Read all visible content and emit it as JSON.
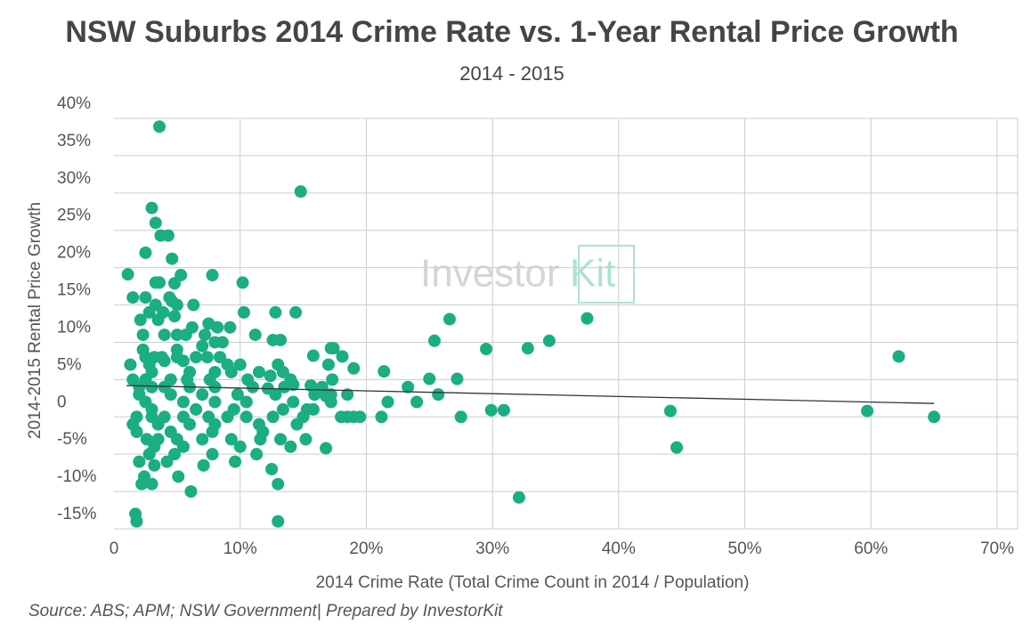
{
  "chart_data": {
    "type": "scatter",
    "title": "NSW Suburbs 2014 Crime Rate vs. 1-Year Rental Price Growth",
    "subtitle": "2014 - 2015",
    "x_label": "2014 Crime Rate (Total Crime Count in 2014 / Population)",
    "y_label": "2014-2015 Rental Price Growth",
    "source": "Source: ABS; APM; NSW Government| Prepared by InvestorKit",
    "watermark": [
      "Investor",
      "Kit"
    ],
    "color": "#1aae82",
    "grid": true,
    "xlim": [
      0,
      70
    ],
    "ylim": [
      -15,
      40
    ],
    "xticks": [
      0,
      {
        "value": 10,
        "label": "10%"
      },
      {
        "value": 20,
        "label": "20%"
      },
      {
        "value": 30,
        "label": "30%"
      },
      {
        "value": 40,
        "label": "40%"
      },
      {
        "value": 50,
        "label": "50%"
      },
      {
        "value": 60,
        "label": "60%"
      },
      {
        "value": 70,
        "label": "70%"
      }
    ],
    "yticks": [
      {
        "value": 40,
        "label": "40%"
      },
      {
        "value": 35,
        "label": "35%"
      },
      {
        "value": 30,
        "label": "30%"
      },
      {
        "value": 25,
        "label": "25%"
      },
      {
        "value": 20,
        "label": "20%"
      },
      {
        "value": 15,
        "label": "15%"
      },
      {
        "value": 10,
        "label": "10%"
      },
      {
        "value": 5,
        "label": "5%"
      },
      0,
      {
        "value": -5,
        "label": "-5%"
      },
      {
        "value": -10,
        "label": "-10%"
      },
      {
        "value": -15,
        "label": "-15%"
      }
    ],
    "trendline": {
      "x": [
        1,
        65
      ],
      "y": [
        4.2,
        1.8
      ]
    },
    "x": [
      3.6,
      14.8,
      3,
      3.3,
      3.7,
      4.3,
      2.5,
      4.6,
      1.1,
      5.3,
      7.8,
      3.3,
      3.6,
      4.8,
      10.2,
      1.5,
      2.5,
      4.4,
      4.6,
      3.3,
      5,
      6.3,
      2.8,
      3.9,
      10.3,
      12.8,
      14.4,
      2.1,
      3.5,
      4.8,
      6.2,
      8.2,
      9.2,
      7.5,
      26.6,
      37.5,
      2.3,
      4,
      5,
      5.7,
      7.2,
      11.2,
      8,
      8.6,
      12.6,
      13.2,
      25.4,
      34.5,
      2.3,
      5,
      7,
      17.2,
      17.4,
      29.5,
      32.8,
      2.5,
      3.2,
      3.8,
      5,
      6.5,
      7.4,
      8.4,
      15.8,
      18.1,
      62.2,
      1.3,
      2.8,
      4,
      5.5,
      9,
      10,
      13,
      17,
      19,
      21.4,
      3,
      6,
      8,
      9.3,
      11.5,
      12.4,
      13.4,
      14,
      27.2,
      25,
      1.5,
      2.5,
      4.5,
      5.8,
      7.6,
      10.6,
      17.3,
      15.6,
      23.3,
      16.5,
      2,
      3,
      4,
      6,
      8,
      11,
      12.2,
      13.5,
      14.2,
      2,
      4.5,
      7,
      9.8,
      12.8,
      15.9,
      17.2,
      18.5,
      25.7,
      16.8,
      2.5,
      5.5,
      8,
      10.5,
      14.2,
      17.2,
      21.7,
      24,
      3,
      6.5,
      9.5,
      13.4,
      15.3,
      15.8,
      29.9,
      30.9,
      44.1,
      59.7,
      1.8,
      3,
      4,
      5.5,
      7.5,
      9,
      10.5,
      12.6,
      15,
      18,
      18.5,
      19,
      19.5,
      21.2,
      27.5,
      65,
      1.5,
      3.5,
      6,
      8,
      11.5,
      14.5,
      1.8,
      4.5,
      7.8,
      11.8,
      2.6,
      3.5,
      5,
      7,
      9.3,
      11.6,
      13.2,
      15.2,
      3.2,
      5.5,
      10,
      14,
      16.8,
      44.6,
      2.8,
      4.8,
      7.8,
      11.3,
      2,
      3.2,
      4.2,
      7.1,
      9.6,
      12.5,
      2.4,
      5.1,
      2.2,
      3,
      13,
      6.1,
      32.1,
      1.7,
      1.8,
      13
    ],
    "values": [
      38.9,
      30.2,
      28,
      26,
      24.3,
      24.3,
      22,
      21.2,
      19.1,
      19,
      19,
      18,
      18,
      17.9,
      18,
      16,
      16,
      16,
      15.5,
      15,
      15,
      15,
      14,
      14,
      14,
      14,
      14,
      13,
      13,
      13.5,
      12,
      12,
      12,
      12.5,
      13.1,
      13.2,
      11,
      11,
      11,
      11,
      11,
      11,
      10,
      10,
      10.3,
      10.3,
      10.2,
      10.2,
      9,
      9,
      9.5,
      9.2,
      9.2,
      9.1,
      9.2,
      8,
      8,
      8,
      8,
      8,
      8,
      8,
      8.2,
      8.1,
      8.1,
      7,
      7,
      7.5,
      7.5,
      7,
      7,
      7,
      7,
      6.5,
      6.1,
      6,
      6,
      6,
      6,
      6,
      5.5,
      6,
      5,
      5.1,
      5.1,
      5,
      5,
      5,
      5,
      5,
      5,
      5,
      4.2,
      4,
      4,
      4,
      4,
      4,
      4,
      4,
      4,
      3.8,
      4,
      4.3,
      3,
      3,
      3,
      3,
      3,
      3,
      3,
      3,
      3,
      2.8,
      2,
      2,
      2,
      2,
      2,
      2,
      2,
      2,
      1,
      1,
      1,
      1,
      1,
      1,
      0.9,
      0.9,
      0.8,
      0.8,
      0,
      0,
      0,
      0,
      0,
      0,
      0,
      0,
      0,
      0,
      0,
      0,
      0,
      0,
      0,
      0,
      -1,
      -1,
      -1,
      -1,
      -1,
      -1,
      -2,
      -2,
      -2,
      -2,
      -3,
      -3,
      -3,
      -3,
      -3,
      -3,
      -3,
      -3,
      -4,
      -4,
      -4,
      -4,
      -4.2,
      -4.1,
      -5,
      -5,
      -5,
      -5,
      -6,
      -6.5,
      -6,
      -6.5,
      -6,
      -7,
      -8,
      -8,
      -9,
      -9,
      -9,
      -10,
      -10.8,
      -13,
      -14,
      -14
    ]
  }
}
